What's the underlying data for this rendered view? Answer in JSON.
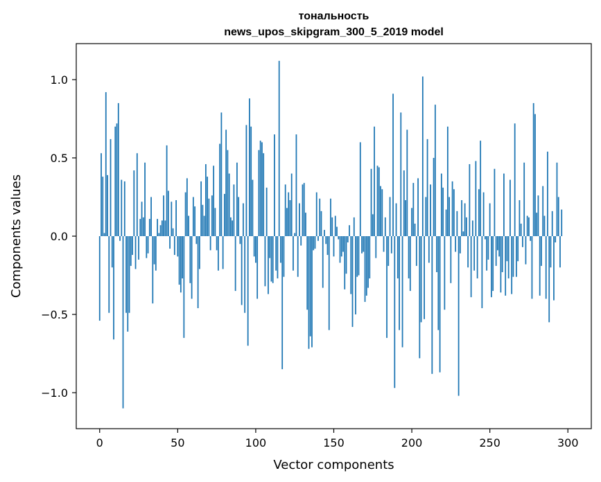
{
  "chart_data": {
    "type": "bar",
    "title": "тональность",
    "subtitle": "news_upos_skipgram_300_5_2019 model",
    "xlabel": "Vector components",
    "ylabel": "Components values",
    "xlim": [
      -15,
      315
    ],
    "ylim": [
      -1.23,
      1.23
    ],
    "xticks": [
      0,
      50,
      100,
      150,
      200,
      250,
      300
    ],
    "xtick_labels": [
      "0",
      "50",
      "100",
      "150",
      "200",
      "250",
      "300"
    ],
    "yticks": [
      -1.0,
      -0.5,
      0.0,
      0.5,
      1.0
    ],
    "ytick_labels": [
      "−1.0",
      "−0.5",
      "0.0",
      "0.5",
      "1.0"
    ],
    "bar_color": "#1f77b4",
    "values": [
      -0.54,
      0.53,
      0.38,
      0.02,
      0.92,
      0.39,
      -0.49,
      0.62,
      -0.2,
      -0.66,
      0.7,
      0.72,
      0.85,
      -0.03,
      0.36,
      -1.1,
      0.35,
      -0.49,
      -0.61,
      -0.49,
      -0.19,
      -0.12,
      0.42,
      -0.21,
      0.53,
      -0.15,
      0.11,
      0.22,
      0.12,
      0.47,
      -0.14,
      -0.11,
      0.11,
      0.25,
      -0.43,
      -0.18,
      -0.22,
      0.11,
      0.02,
      0.07,
      0.1,
      0.26,
      0.1,
      0.58,
      0.29,
      -0.08,
      0.22,
      0.05,
      -0.12,
      0.23,
      -0.13,
      -0.31,
      -0.36,
      -0.27,
      -0.65,
      0.28,
      0.37,
      0.13,
      -0.3,
      -0.4,
      0.25,
      0.19,
      -0.05,
      -0.46,
      -0.21,
      0.35,
      0.2,
      0.13,
      0.46,
      0.38,
      0.24,
      -0.09,
      0.26,
      0.45,
      0.18,
      -0.09,
      -0.22,
      0.59,
      0.79,
      -0.21,
      0.27,
      0.68,
      0.55,
      0.4,
      0.12,
      0.1,
      0.33,
      -0.35,
      0.47,
      0.25,
      -0.05,
      -0.44,
      0.21,
      -0.49,
      0.71,
      -0.7,
      0.88,
      0.7,
      0.36,
      -0.13,
      -0.17,
      -0.4,
      0.55,
      0.61,
      0.6,
      0.53,
      -0.32,
      0.31,
      -0.37,
      -0.14,
      -0.29,
      -0.3,
      0.65,
      -0.22,
      -0.27,
      1.12,
      -0.17,
      -0.85,
      -0.26,
      0.33,
      0.18,
      0.28,
      0.23,
      0.4,
      -0.22,
      0.02,
      0.65,
      -0.26,
      0.21,
      -0.06,
      0.33,
      0.34,
      0.15,
      -0.47,
      -0.72,
      -0.64,
      -0.71,
      -0.09,
      -0.08,
      0.28,
      -0.03,
      0.24,
      0.16,
      -0.33,
      0.04,
      -0.05,
      -0.12,
      -0.6,
      0.24,
      0.12,
      -0.13,
      0.13,
      0.06,
      -0.02,
      -0.17,
      -0.13,
      -0.1,
      -0.34,
      -0.24,
      -0.04,
      0.07,
      -0.37,
      -0.58,
      0.12,
      -0.5,
      -0.26,
      -0.25,
      0.6,
      -0.11,
      -0.1,
      -0.42,
      -0.38,
      -0.33,
      -0.27,
      0.43,
      0.14,
      0.7,
      -0.14,
      0.45,
      0.44,
      0.32,
      0.3,
      -0.1,
      0.12,
      -0.65,
      -0.19,
      0.25,
      -0.11,
      0.91,
      -0.97,
      0.21,
      -0.27,
      -0.6,
      0.79,
      -0.71,
      0.42,
      0.23,
      0.68,
      -0.27,
      -0.35,
      0.18,
      0.34,
      0.08,
      -0.19,
      0.37,
      -0.78,
      -0.55,
      1.02,
      -0.53,
      0.25,
      0.62,
      -0.17,
      0.33,
      -0.88,
      0.5,
      0.84,
      -0.23,
      -0.6,
      -0.87,
      0.4,
      0.31,
      -0.47,
      0.17,
      0.7,
      0.25,
      -0.3,
      0.35,
      0.3,
      -0.1,
      0.16,
      -1.02,
      -0.11,
      0.23,
      0.03,
      0.21,
      0.12,
      -0.2,
      0.46,
      -0.39,
      0.1,
      -0.22,
      0.48,
      -0.27,
      0.3,
      0.61,
      -0.46,
      0.28,
      -0.02,
      -0.22,
      -0.15,
      0.21,
      -0.39,
      -0.35,
      0.43,
      -0.19,
      -0.09,
      -0.13,
      -0.36,
      -0.23,
      0.4,
      -0.38,
      -0.16,
      -0.27,
      0.36,
      -0.37,
      -0.26,
      0.72,
      -0.26,
      -0.16,
      0.23,
      0.08,
      -0.07,
      0.47,
      -0.18,
      0.13,
      0.12,
      -0.03,
      -0.4,
      0.85,
      0.78,
      0.15,
      0.26,
      -0.38,
      -0.19,
      0.32,
      0.13,
      -0.4,
      0.54,
      -0.55,
      -0.2,
      0.16,
      -0.41,
      -0.04,
      0.47,
      0.25,
      -0.2,
      0.17
    ]
  }
}
